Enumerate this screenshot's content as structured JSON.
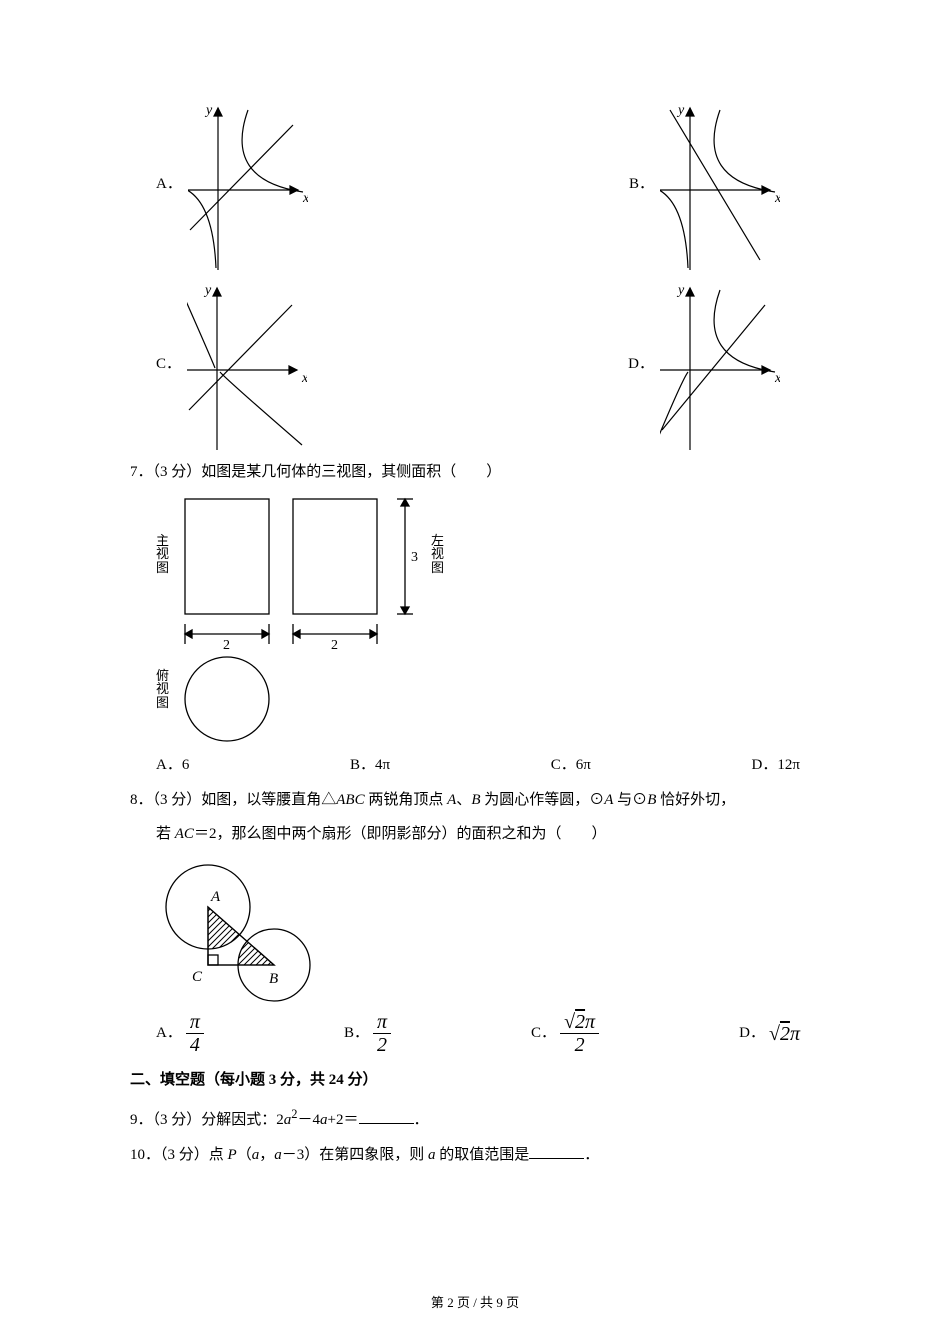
{
  "page": {
    "current": "2",
    "total": "9",
    "label_prefix": "第 ",
    "label_mid": " 页 / 共 ",
    "label_suffix": " 页"
  },
  "options": {
    "A": "A．",
    "B": "B．",
    "C": "C．",
    "D": "D．"
  },
  "graph_style": {
    "stroke": "#000000",
    "stroke_width": 1.2,
    "arrow_size": 8,
    "width": 120,
    "height": 170
  },
  "q7": {
    "text_pre": "7．（3 分）如图是某几何体的三视图，其侧面积（　　）",
    "label_main": "主视图",
    "label_left": "左视图",
    "label_top": "俯视图",
    "dim_w": "2",
    "dim_h": "3",
    "fig": {
      "rect_w": 90,
      "rect_h": 120,
      "circle_r": 44,
      "stroke": "#000000"
    },
    "opts": {
      "A": "6",
      "B": "4π",
      "C": "6π",
      "D": "12π"
    }
  },
  "q8": {
    "line1": "8．（3 分）如图，以等腰直角△<span class=\"italic\">ABC</span> 两锐角顶点 <span class=\"italic\">A</span>、<span class=\"italic\">B</span> 为圆心作等圆，⊙<span class=\"italic\">A</span> 与⊙<span class=\"italic\">B</span> 恰好外切，",
    "line2": "若 <span class=\"italic\">AC</span>＝2，那么图中两个扇形（即阴影部分）的面积之和为（　　）",
    "label_A": "A",
    "label_B": "B",
    "label_C": "C",
    "fig": {
      "circle_r": 38,
      "stroke": "#000000"
    },
    "opts": {
      "A": {
        "num": "π",
        "den": "4"
      },
      "B": {
        "num": "π",
        "den": "2"
      },
      "C": {
        "num": "√2π",
        "den": "2"
      },
      "D": "√2π"
    }
  },
  "sec2": {
    "title": "二、填空题（每小题 3 分，共 24 分）"
  },
  "q9": {
    "text_pre": "9．（3 分）分解因式：2",
    "text_mid1": "a",
    "text_sup1": "2",
    "text_mid2": "－4",
    "text_mid3": "a",
    "text_mid4": "+2＝",
    "text_post": "．"
  },
  "q10": {
    "text_pre": "10．（3 分）点 ",
    "P": "P",
    "paren_l": "（",
    "a1": "a",
    "comma": "，",
    "a2": "a",
    "minus3": "－3",
    "paren_r": "）在第四象限，则 ",
    "a3": "a",
    "tail": " 的取值范围是",
    "period": "．"
  }
}
